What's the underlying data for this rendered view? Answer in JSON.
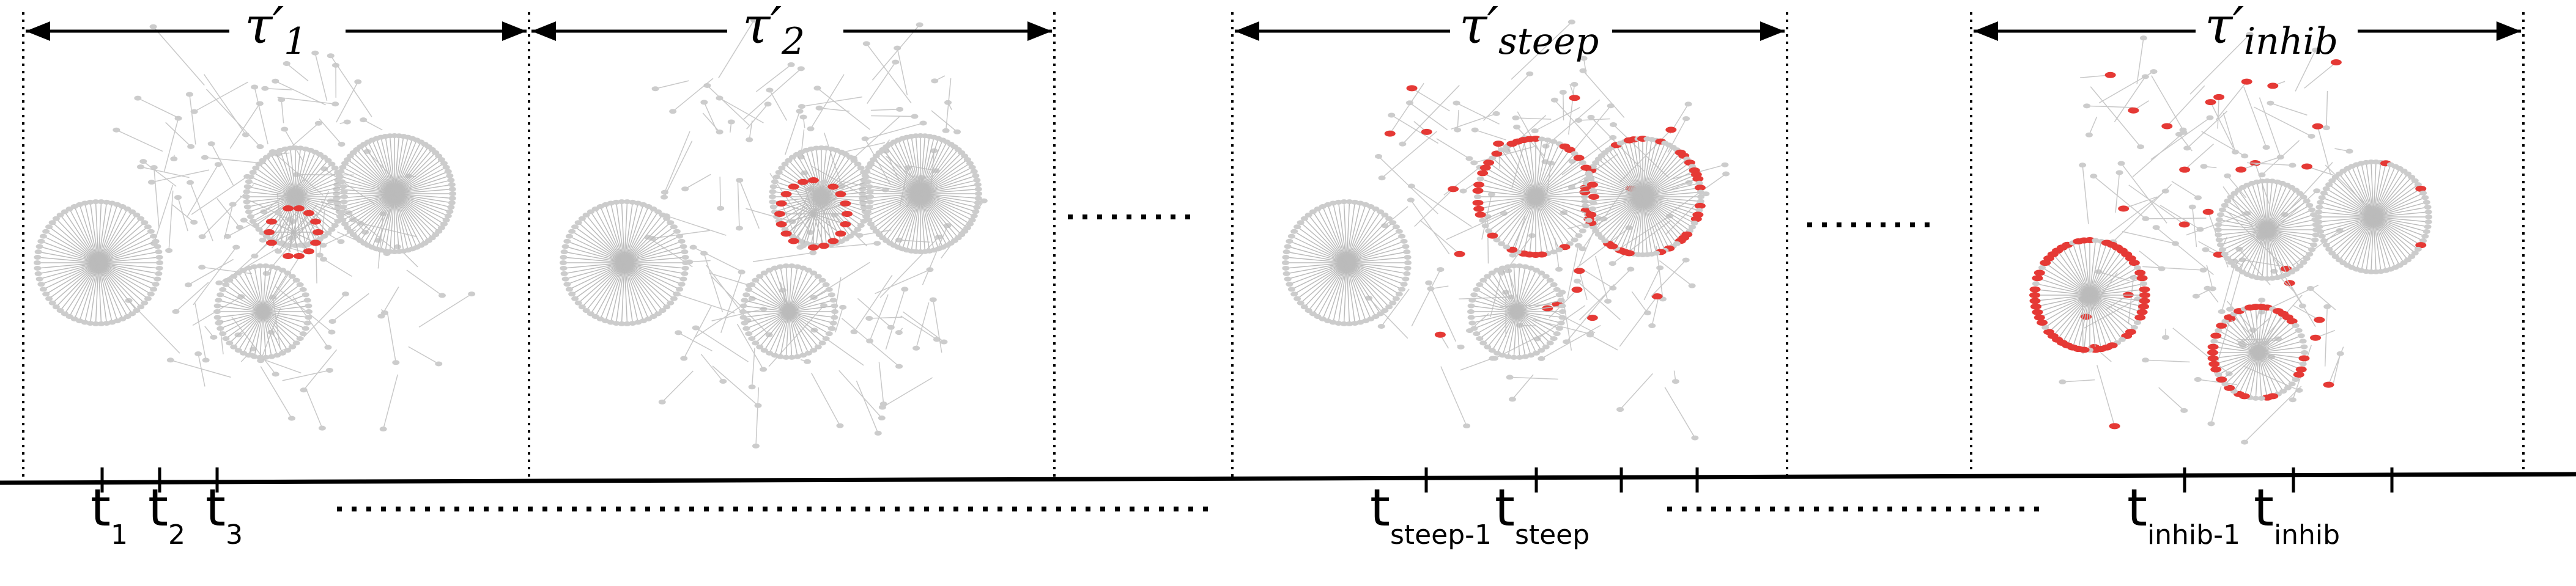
{
  "windows": [
    {
      "symbol": "τ′",
      "subscript": "1"
    },
    {
      "symbol": "τ′",
      "subscript": "2"
    },
    {
      "symbol": "τ′",
      "subscript": "steep"
    },
    {
      "symbol": "τ′",
      "subscript": "inhib"
    }
  ],
  "time_labels": [
    {
      "symbol": "t",
      "subscript": "1"
    },
    {
      "symbol": "t",
      "subscript": "2"
    },
    {
      "symbol": "t",
      "subscript": "3"
    },
    {
      "symbol": "t",
      "subscript": "steep-1"
    },
    {
      "symbol": "t",
      "subscript": "steep"
    },
    {
      "symbol": "t",
      "subscript": "inhib-1"
    },
    {
      "symbol": "t",
      "subscript": "inhib"
    }
  ]
}
